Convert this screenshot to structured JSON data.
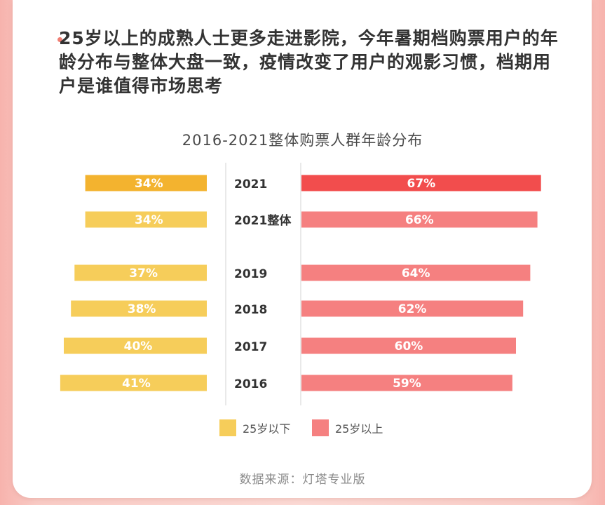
{
  "headline": "25岁以上的成熟人士更多走进影院，今年暑期档购票用户的年龄分布与整体大盘一致，疫情改变了用户的观影习惯，档期用户是谁值得市场思考",
  "source": "数据来源：灯塔专业版",
  "colors": {
    "under25": "#f6cd5a",
    "under25_highlight": "#f3b32f",
    "over25": "#f58080",
    "over25_highlight": "#f24d4d"
  },
  "chart_data": {
    "type": "bar",
    "title": "2016-2021整体购票人群年龄分布",
    "categories": [
      "2021",
      "2021整体",
      "2019",
      "2018",
      "2017",
      "2016"
    ],
    "series": [
      {
        "name": "25岁以下",
        "values": [
          34,
          34,
          37,
          38,
          40,
          41
        ],
        "labels": [
          "34%",
          "34%",
          "37%",
          "38%",
          "40%",
          "41%"
        ]
      },
      {
        "name": "25岁以上",
        "values": [
          67,
          66,
          64,
          62,
          60,
          59
        ],
        "labels": [
          "67%",
          "66%",
          "64%",
          "62%",
          "60%",
          "59%"
        ]
      }
    ],
    "highlighted_category": "2021",
    "legend_position": "bottom",
    "grid": false
  }
}
